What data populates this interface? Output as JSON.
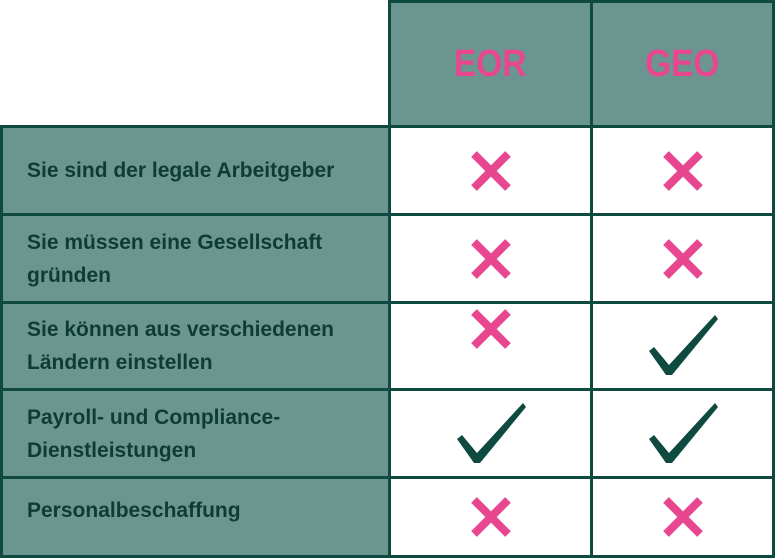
{
  "table": {
    "columns": [
      {
        "label": "EOR"
      },
      {
        "label": "GEO"
      }
    ],
    "rows": [
      {
        "label": "Sie sind der legale Arbeitgeber",
        "eor": "cross-icon",
        "geo": "cross-icon"
      },
      {
        "label": "Sie müssen eine Gesellschaft gründen",
        "eor": "cross-icon",
        "geo": "cross-icon"
      },
      {
        "label": "Sie können aus verschiedenen Ländern einstellen",
        "eor": "cross-icon",
        "geo": "checkmark-icon"
      },
      {
        "label": "Payroll- und Compliance-Dienstleistungen",
        "eor": "checkmark-icon",
        "geo": "checkmark-icon"
      },
      {
        "label": "Personalbeschaffung",
        "eor": "cross-icon",
        "geo": "cross-icon"
      }
    ]
  },
  "colors": {
    "border": "#0f4a41",
    "header_bg": "#6b968f",
    "accent_pink": "#e8478f",
    "label_text": "#0f3b35",
    "check": "#0f4a41"
  }
}
